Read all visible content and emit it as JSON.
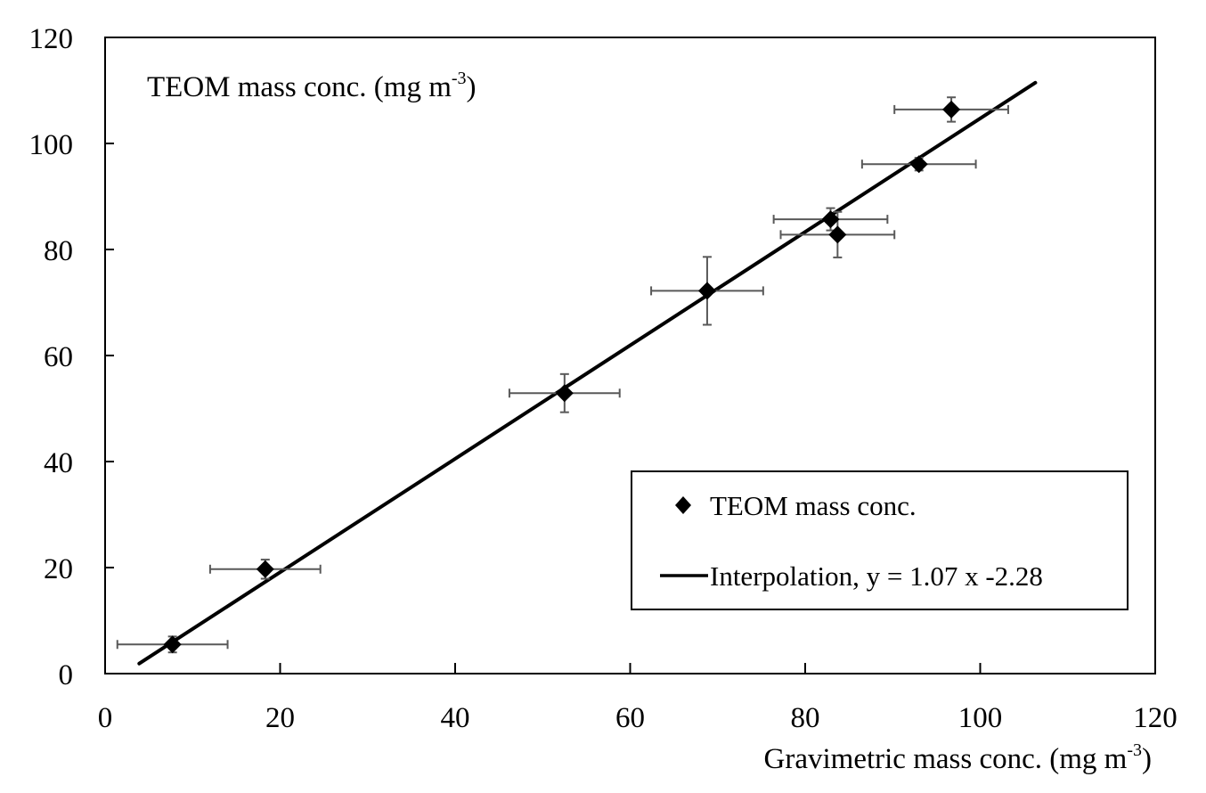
{
  "chart_data": {
    "type": "scatter",
    "title": "TEOM mass conc.  (mg m-3)",
    "title_parts": {
      "main": "TEOM mass conc.  (mg m",
      "sup": "-3",
      "end": ")"
    },
    "xlabel": "Gravimetric mass conc. (mg m-3)",
    "xlabel_parts": {
      "main": "Gravimetric mass conc. (mg m",
      "sup": "-3",
      "end": ")"
    },
    "ylabel": "",
    "xlim": [
      0,
      120
    ],
    "ylim": [
      0,
      120
    ],
    "x_ticks": [
      0,
      20,
      40,
      60,
      80,
      100,
      120
    ],
    "y_ticks": [
      0,
      20,
      40,
      60,
      80,
      100,
      120
    ],
    "x_tick_labels": [
      "0",
      "20",
      "40",
      "60",
      "80",
      "100",
      "120"
    ],
    "y_tick_labels": [
      "0",
      "20",
      "40",
      "60",
      "80",
      "100",
      "120"
    ],
    "grid": false,
    "legend_position": "bottom-right",
    "series": [
      {
        "name": "TEOM mass conc.",
        "kind": "scatter",
        "marker": "diamond",
        "color": "#000000",
        "errorbar_color": "#595959",
        "points": [
          {
            "x": 7.7,
            "y": 5.5,
            "xerr": 6.3,
            "yerr": 1.5
          },
          {
            "x": 18.3,
            "y": 19.7,
            "xerr": 6.3,
            "yerr": 1.8
          },
          {
            "x": 52.5,
            "y": 52.9,
            "xerr": 6.3,
            "yerr": 3.6
          },
          {
            "x": 68.8,
            "y": 72.2,
            "xerr": 6.4,
            "yerr": 6.4
          },
          {
            "x": 82.9,
            "y": 85.7,
            "xerr": 6.5,
            "yerr": 2.1
          },
          {
            "x": 83.7,
            "y": 82.8,
            "xerr": 6.5,
            "yerr": 4.3
          },
          {
            "x": 93.0,
            "y": 96.1,
            "xerr": 6.5,
            "yerr": 1.2
          },
          {
            "x": 96.7,
            "y": 106.4,
            "xerr": 6.5,
            "yerr": 2.3
          }
        ]
      },
      {
        "name": "Interpolation, y = 1.07 x -2.28",
        "kind": "line",
        "color": "#000000",
        "slope": 1.07,
        "intercept": -2.28,
        "x_range": [
          3.9,
          106.3
        ]
      }
    ],
    "legend": [
      {
        "label": "TEOM mass conc.",
        "symbol": "diamond"
      },
      {
        "label": "Interpolation, y = 1.07 x -2.28",
        "symbol": "line"
      }
    ]
  }
}
